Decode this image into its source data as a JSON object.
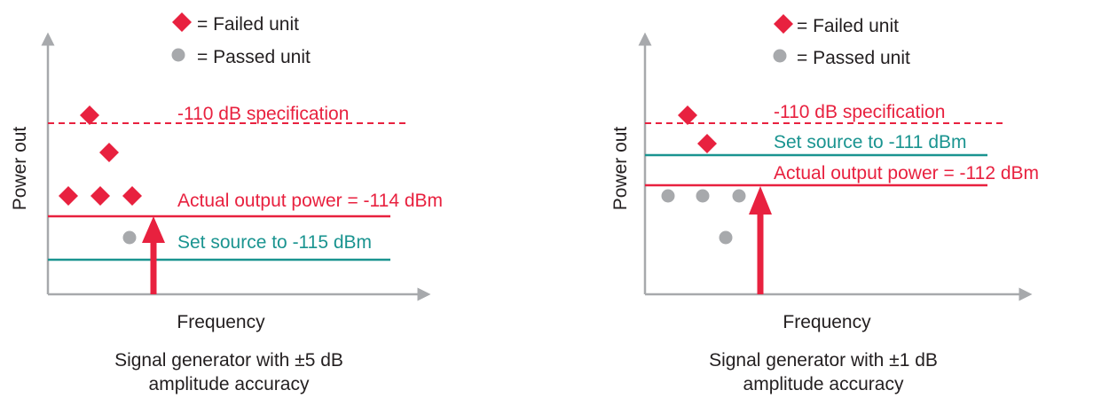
{
  "colors": {
    "failed": "#e8213f",
    "passed": "#a7a9ac",
    "axis": "#a7a9ac",
    "teal": "#1a9490",
    "text": "#231f20"
  },
  "legend": {
    "failed_label": "= Failed unit",
    "passed_label": "= Passed unit",
    "failed_icon": "red-diamond-marker",
    "passed_icon": "gray-circle-marker"
  },
  "panels": [
    {
      "y_axis_label": "Power out",
      "x_axis_label": "Frequency",
      "spec_label": "-110 dB specification",
      "actual_label": "Actual output power = -114 dBm",
      "source_label": "Set source to -115 dBm",
      "caption_line1": "Signal generator with ±5 dB",
      "caption_line2": "amplitude accuracy",
      "failed_units": 5,
      "passed_units": 1
    },
    {
      "y_axis_label": "Power out",
      "x_axis_label": "Frequency",
      "spec_label": "-110 dB specification",
      "actual_label": "Actual output power = -112 dBm",
      "source_label": "Set source to -111 dBm",
      "caption_line1": "Signal generator with ±1 dB",
      "caption_line2": "amplitude accuracy",
      "failed_units": 2,
      "passed_units": 4
    }
  ]
}
